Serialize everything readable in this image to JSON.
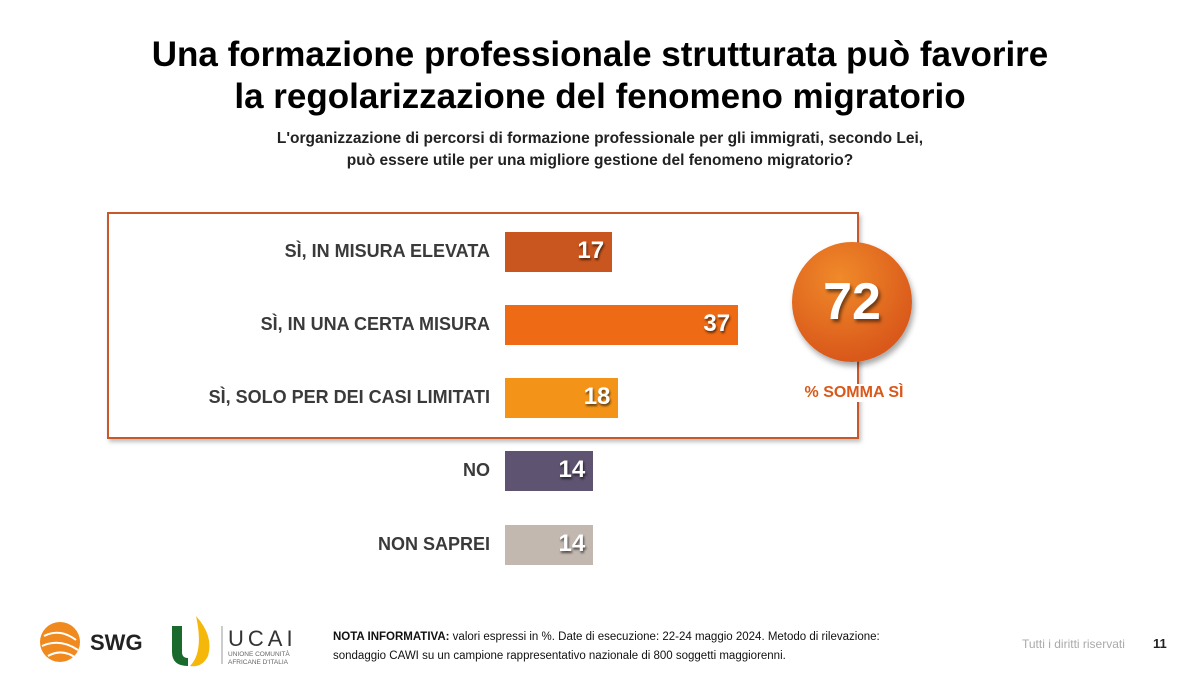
{
  "title_lines": [
    "Una formazione professionale strutturata può favorire",
    "la regolarizzazione del fenomeno migratorio"
  ],
  "subtitle_lines": [
    "L'organizzazione di percorsi di formazione professionale per gli immigrati, secondo Lei,",
    "può essere utile per una migliore gestione del fenomeno migratorio?"
  ],
  "chart_data": {
    "type": "bar",
    "orientation": "horizontal",
    "categories": [
      "SÌ, IN MISURA ELEVATA",
      "SÌ, IN UNA CERTA MISURA",
      "SÌ, SOLO PER DEI CASI LIMITATI",
      "NO",
      "NON SAPREI"
    ],
    "values": [
      17,
      37,
      18,
      14,
      14
    ],
    "colors": [
      "#c8561e",
      "#ee6a14",
      "#f39419",
      "#5e5370",
      "#c2b8b0"
    ],
    "unit": "%",
    "highlight_total": {
      "value": "72",
      "label": "% SOMMA SÌ",
      "color": "#d9581a"
    }
  },
  "footer": {
    "logos": [
      "SWG",
      "UCAI",
      "Unione Comunità Africane d'Italia"
    ],
    "note_label": "NOTA INFORMATIVA:",
    "note_line1": " valori espressi in %. Date di esecuzione: 22-24 maggio 2024. Metodo di rilevazione:",
    "note_line2": "sondaggio CAWI su un campione rappresentativo nazionale di 800 soggetti maggiorenni.",
    "rights": "Tutti i diritti riservati",
    "page": "11"
  }
}
